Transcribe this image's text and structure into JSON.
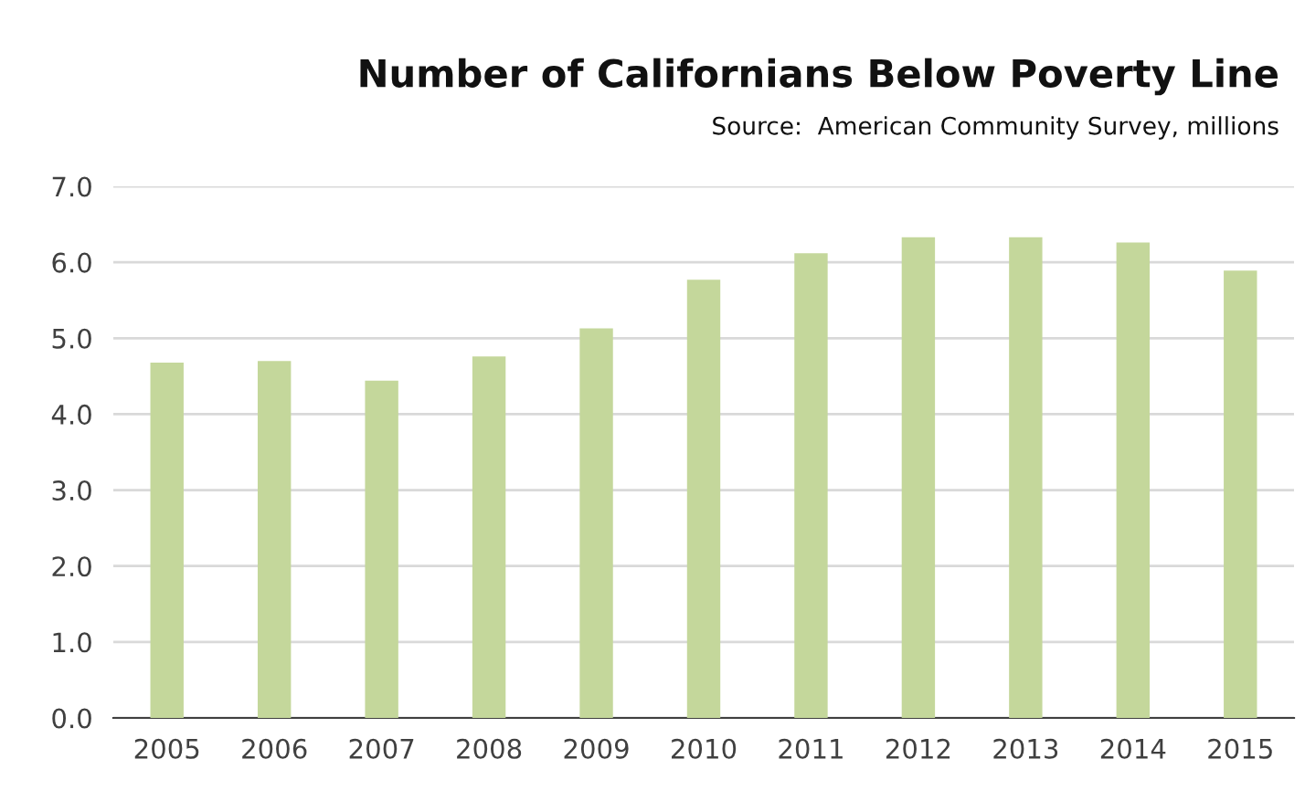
{
  "chart_data": {
    "type": "bar",
    "title": "Number of Californians Below Poverty Line",
    "subtitle": "Source:  American Community Survey, millions",
    "categories": [
      "2005",
      "2006",
      "2007",
      "2008",
      "2009",
      "2010",
      "2011",
      "2012",
      "2013",
      "2014",
      "2015"
    ],
    "values": [
      4.68,
      4.7,
      4.44,
      4.76,
      5.13,
      5.77,
      6.12,
      6.33,
      6.33,
      6.26,
      5.89
    ],
    "color": "#c4d79b",
    "ylim": [
      0,
      7
    ],
    "yticks": [
      {
        "value": 0,
        "label": "0.0"
      },
      {
        "value": 1,
        "label": "1.0"
      },
      {
        "value": 2,
        "label": "2.0"
      },
      {
        "value": 3,
        "label": "3.0"
      },
      {
        "value": 4,
        "label": "4.0"
      },
      {
        "value": 5,
        "label": "5.0"
      },
      {
        "value": 6,
        "label": "6.0"
      },
      {
        "value": 7,
        "label": "7.0"
      }
    ],
    "grid": "y"
  }
}
